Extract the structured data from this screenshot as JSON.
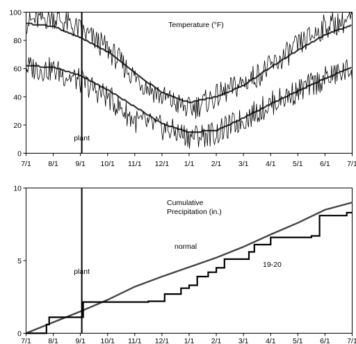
{
  "chart_data": [
    {
      "type": "line",
      "title": "Temperature (°F)",
      "xlabel": "",
      "ylabel": "",
      "x_ticks": [
        "7/1",
        "8/1",
        "9/1",
        "10/1",
        "11/1",
        "12/1",
        "1/1",
        "2/1",
        "3/1",
        "4/1",
        "5/1",
        "6/1",
        "7/1"
      ],
      "y_ticks": [
        0,
        20,
        40,
        60,
        80,
        100
      ],
      "ylim": [
        0,
        100
      ],
      "grid": false,
      "annotations": [
        {
          "text": "plant",
          "x_month": 2.05
        }
      ],
      "series": [
        {
          "values_by_month": [
            92,
            90,
            82,
            72,
            57,
            43,
            36,
            40,
            48,
            61,
            73,
            84,
            91
          ]
        },
        {
          "values_by_month": [
            62,
            61,
            55,
            45,
            33,
            21,
            15,
            16,
            25,
            35,
            44,
            53,
            61
          ]
        },
        {
          "values_by_month": [
            93,
            97,
            87,
            74,
            54,
            40,
            31,
            40,
            50,
            61,
            76,
            90,
            95
          ]
        },
        {
          "values_by_month": [
            61,
            59,
            51,
            40,
            23,
            18,
            12,
            14,
            24,
            35,
            44,
            53,
            60
          ]
        }
      ]
    },
    {
      "type": "line",
      "title": "Cumulative\nPrecipitation (in.)",
      "xlabel": "",
      "ylabel": "",
      "x_ticks": [
        "7/1",
        "8/1",
        "9/1",
        "10/1",
        "11/1",
        "12/1",
        "1/1",
        "2/1",
        "3/1",
        "4/1",
        "5/1",
        "6/1",
        "7/1"
      ],
      "y_ticks": [
        0,
        5,
        10
      ],
      "ylim": [
        0,
        10
      ],
      "grid": false,
      "annotations": [
        {
          "text": "plant",
          "x_month": 2.05
        }
      ],
      "series": [
        {
          "name": "normal",
          "points": [
            [
              0,
              0
            ],
            [
              1,
              0.75
            ],
            [
              2,
              1.5
            ],
            [
              3,
              2.3
            ],
            [
              4,
              3.2
            ],
            [
              5,
              3.9
            ],
            [
              6,
              4.55
            ],
            [
              7,
              5.2
            ],
            [
              8,
              5.95
            ],
            [
              9,
              6.8
            ],
            [
              10,
              7.6
            ],
            [
              11,
              8.5
            ],
            [
              12,
              9.0
            ]
          ]
        },
        {
          "name": "19-20",
          "points": [
            [
              0,
              0
            ],
            [
              0.75,
              0.6
            ],
            [
              0.85,
              1.1
            ],
            [
              2.05,
              1.1
            ],
            [
              2.1,
              2.15
            ],
            [
              4.5,
              2.2
            ],
            [
              5.1,
              2.7
            ],
            [
              5.7,
              3.1
            ],
            [
              6.0,
              3.3
            ],
            [
              6.3,
              3.9
            ],
            [
              6.7,
              4.2
            ],
            [
              7.0,
              4.5
            ],
            [
              7.3,
              5.1
            ],
            [
              8.2,
              5.6
            ],
            [
              8.4,
              6.1
            ],
            [
              9.0,
              6.6
            ],
            [
              10.5,
              6.7
            ],
            [
              10.8,
              8.1
            ],
            [
              11.8,
              8.3
            ],
            [
              12,
              8.3
            ]
          ]
        }
      ]
    }
  ]
}
